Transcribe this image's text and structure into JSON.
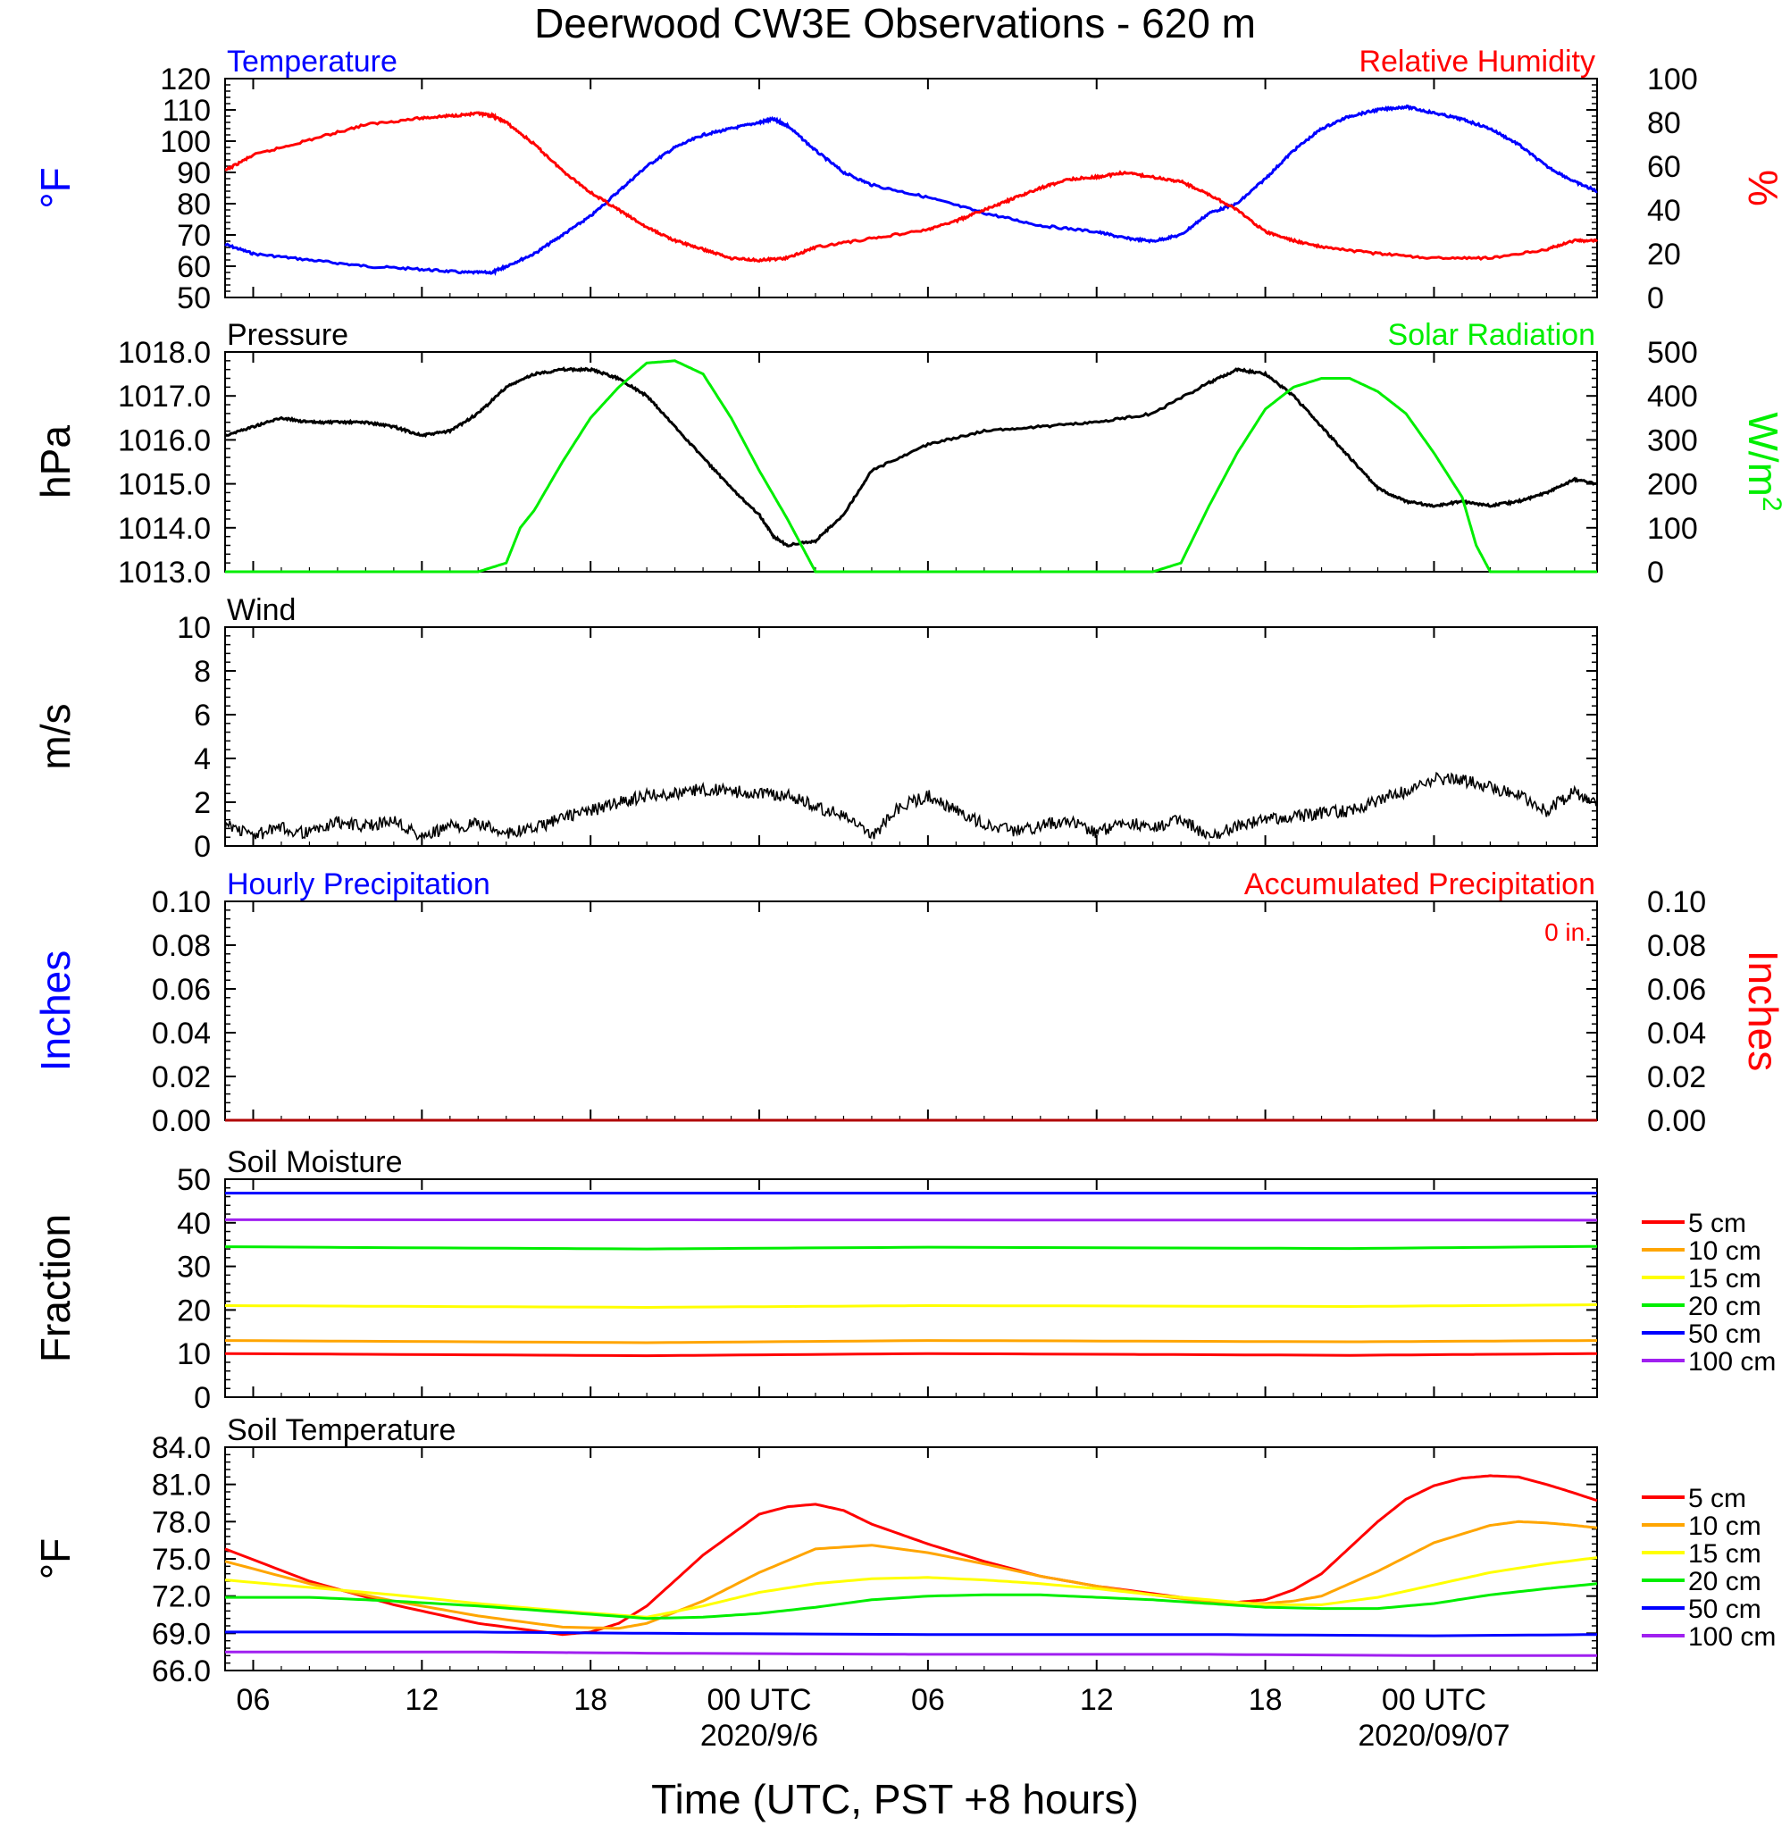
{
  "title": "Deerwood CW3E Observations - 620 m",
  "x_axis": {
    "label": "Time (UTC, PST +8 hours)",
    "ticks": [
      {
        "h": 6,
        "label": "06",
        "date": ""
      },
      {
        "h": 12,
        "label": "12",
        "date": ""
      },
      {
        "h": 18,
        "label": "18",
        "date": ""
      },
      {
        "h": 24,
        "label": "00 UTC",
        "date": "2020/9/6"
      },
      {
        "h": 30,
        "label": "06",
        "date": ""
      },
      {
        "h": 36,
        "label": "12",
        "date": ""
      },
      {
        "h": 42,
        "label": "18",
        "date": ""
      },
      {
        "h": 48,
        "label": "00 UTC",
        "date": "2020/09/07"
      }
    ]
  },
  "colors": {
    "blue": "#0000ff",
    "red": "#ff0000",
    "green": "#00ee00",
    "black": "#000000",
    "orange": "#ffa500",
    "yellow": "#ffff00",
    "purple": "#a020f0",
    "dkred": "#b00000"
  },
  "chart_data": [
    {
      "type": "line",
      "panel": "temp_rh",
      "left_title": "Temperature",
      "right_title": "Relative Humidity",
      "left_ylabel": "°F",
      "right_ylabel": "%",
      "left_ylim": [
        50,
        120
      ],
      "right_ylim": [
        0,
        100
      ],
      "left_ticks": [
        "120",
        "110",
        "100",
        "90",
        "80",
        "70",
        "60",
        "50"
      ],
      "right_ticks": [
        "100",
        "80",
        "60",
        "40",
        "20",
        "0"
      ],
      "series": [
        {
          "axis": "left",
          "color": "#0000ff",
          "x": [
            5,
            6,
            8,
            10,
            12,
            13.5,
            14.5,
            15,
            16,
            17,
            18,
            19,
            20,
            21,
            22,
            23,
            24,
            24.5,
            25,
            26,
            27,
            28,
            30,
            32,
            34,
            36,
            37,
            38,
            39,
            40,
            41,
            42,
            43,
            44,
            45,
            46,
            47,
            48,
            49,
            50,
            51,
            52,
            53,
            53.8
          ],
          "y": [
            67,
            64,
            62,
            60,
            59,
            58,
            58,
            60,
            64,
            70,
            76,
            84,
            92,
            98,
            102,
            104,
            106,
            107,
            105,
            97,
            90,
            86,
            82,
            77,
            73,
            71,
            69,
            68,
            70,
            77,
            80,
            88,
            97,
            104,
            108,
            110,
            111,
            109,
            107,
            104,
            99,
            92,
            87,
            84
          ]
        },
        {
          "axis": "right",
          "color": "#ff0000",
          "x": [
            5,
            6,
            8,
            10,
            12,
            13,
            14,
            14.5,
            15,
            16,
            17,
            18,
            19,
            20,
            21,
            22,
            23,
            24,
            25,
            26,
            28,
            30,
            31,
            32,
            33,
            34,
            35,
            36,
            37,
            38,
            39,
            40,
            41,
            42,
            43,
            44,
            46,
            48,
            50,
            52,
            53,
            53.8
          ],
          "y": [
            58,
            65,
            72,
            79,
            82,
            83,
            84,
            83,
            80,
            70,
            58,
            48,
            40,
            32,
            26,
            22,
            18,
            17,
            18,
            23,
            27,
            31,
            35,
            40,
            45,
            50,
            54,
            55,
            57,
            55,
            53,
            47,
            40,
            30,
            26,
            23,
            20,
            18,
            18,
            22,
            26,
            26
          ]
        }
      ]
    },
    {
      "type": "line",
      "panel": "pressure_solar",
      "left_title": "Pressure",
      "right_title": "Solar Radiation",
      "left_ylabel": "hPa",
      "right_ylabel": "W/m2",
      "left_ylim": [
        1013,
        1018
      ],
      "right_ylim": [
        0,
        500
      ],
      "left_ticks": [
        "1018.0",
        "1017.0",
        "1016.0",
        "1015.0",
        "1014.0",
        "1013.0"
      ],
      "right_ticks": [
        "500",
        "400",
        "300",
        "200",
        "100",
        "0"
      ],
      "series": [
        {
          "axis": "left",
          "color": "#000000",
          "x": [
            5,
            6,
            7,
            8,
            9,
            10,
            11,
            12,
            13,
            14,
            15,
            16,
            17,
            18,
            19,
            20,
            21,
            22,
            23,
            24,
            24.5,
            25,
            26,
            27,
            28,
            30,
            32,
            34,
            36,
            38,
            40,
            41,
            42,
            43,
            44,
            45,
            46,
            47,
            48,
            49,
            50,
            51,
            52,
            53,
            53.8
          ],
          "y": [
            1016.1,
            1016.3,
            1016.5,
            1016.4,
            1016.4,
            1016.4,
            1016.3,
            1016.1,
            1016.2,
            1016.6,
            1017.2,
            1017.5,
            1017.6,
            1017.6,
            1017.4,
            1017.0,
            1016.3,
            1015.6,
            1014.9,
            1014.3,
            1013.8,
            1013.6,
            1013.7,
            1014.3,
            1015.3,
            1015.9,
            1016.2,
            1016.3,
            1016.4,
            1016.6,
            1017.3,
            1017.6,
            1017.5,
            1017.0,
            1016.3,
            1015.6,
            1014.9,
            1014.6,
            1014.5,
            1014.6,
            1014.5,
            1014.6,
            1014.8,
            1015.1,
            1015.0
          ]
        },
        {
          "axis": "right",
          "color": "#00ee00",
          "x": [
            5,
            14,
            15,
            15.5,
            16,
            17,
            18,
            19,
            20,
            21,
            22,
            23,
            24,
            25,
            25.5,
            26,
            36,
            38,
            39,
            40,
            41,
            42,
            43,
            44,
            45,
            46,
            47,
            48,
            49,
            49.5,
            50,
            53.8
          ],
          "y": [
            0,
            0,
            20,
            100,
            140,
            250,
            350,
            420,
            475,
            480,
            450,
            350,
            230,
            120,
            60,
            0,
            0,
            0,
            20,
            150,
            270,
            370,
            420,
            440,
            440,
            410,
            360,
            270,
            170,
            60,
            0,
            0
          ]
        }
      ]
    },
    {
      "type": "line",
      "panel": "wind",
      "left_title": "Wind",
      "left_ylabel": "m/s",
      "left_ylim": [
        0,
        10
      ],
      "left_ticks": [
        "10",
        "8",
        "6",
        "4",
        "2",
        "0"
      ],
      "series": [
        {
          "axis": "left",
          "color": "#000000",
          "x": [
            5,
            6,
            7,
            8,
            9,
            10,
            11,
            12,
            13,
            14,
            15,
            16,
            17,
            18,
            19,
            20,
            21,
            22,
            23,
            24,
            25,
            26,
            27,
            28,
            29,
            30,
            31,
            32,
            33,
            34,
            35,
            36,
            37,
            38,
            39,
            40,
            41,
            42,
            43,
            44,
            45,
            46,
            47,
            48,
            49,
            50,
            51,
            52,
            53,
            53.8
          ],
          "y": [
            1.0,
            0.5,
            0.8,
            0.6,
            1.1,
            0.9,
            1.2,
            0.4,
            0.9,
            1.0,
            0.6,
            0.8,
            1.3,
            1.6,
            2.0,
            2.3,
            2.4,
            2.6,
            2.5,
            2.4,
            2.3,
            1.8,
            1.4,
            0.4,
            1.8,
            2.3,
            1.6,
            1.0,
            0.7,
            0.9,
            1.2,
            0.6,
            1.1,
            0.8,
            1.3,
            0.4,
            0.9,
            1.2,
            1.3,
            1.5,
            1.6,
            2.1,
            2.5,
            3.1,
            3.0,
            2.7,
            2.3,
            1.6,
            2.5,
            1.8
          ]
        }
      ]
    },
    {
      "type": "line",
      "panel": "precip",
      "left_title": "Hourly Precipitation",
      "right_title": "Accumulated Precipitation",
      "accum_label": "0 in.",
      "left_ylabel": "Inches",
      "right_ylabel": "Inches",
      "left_ylim": [
        0,
        0.1
      ],
      "right_ylim": [
        0,
        0.1
      ],
      "left_ticks": [
        "0.10",
        "0.08",
        "0.06",
        "0.04",
        "0.02",
        "0.00"
      ],
      "right_ticks": [
        "0.10",
        "0.08",
        "0.06",
        "0.04",
        "0.02",
        "0.00"
      ],
      "series": [
        {
          "axis": "left",
          "color": "#b00000",
          "x": [
            5,
            53.8
          ],
          "y": [
            0,
            0
          ]
        }
      ]
    },
    {
      "type": "line",
      "panel": "soil_moisture",
      "left_title": "Soil Moisture",
      "left_ylabel": "Fraction",
      "left_ylim": [
        0,
        50
      ],
      "left_ticks": [
        "50",
        "40",
        "30",
        "20",
        "10",
        "0"
      ],
      "legend": [
        "5 cm",
        "10 cm",
        "15 cm",
        "20 cm",
        "50 cm",
        "100 cm"
      ],
      "series": [
        {
          "name": "5 cm",
          "color": "#ff0000",
          "x": [
            5,
            20,
            30,
            45,
            53.8
          ],
          "y": [
            10,
            9.5,
            10,
            9.6,
            10
          ]
        },
        {
          "name": "10 cm",
          "color": "#ffa500",
          "x": [
            5,
            20,
            30,
            45,
            53.8
          ],
          "y": [
            13,
            12.5,
            13,
            12.7,
            13
          ]
        },
        {
          "name": "15 cm",
          "color": "#ffff00",
          "x": [
            5,
            20,
            30,
            45,
            53.8
          ],
          "y": [
            21,
            20.6,
            21,
            20.8,
            21.2
          ]
        },
        {
          "name": "20 cm",
          "color": "#00ee00",
          "x": [
            5,
            20,
            30,
            45,
            53.8
          ],
          "y": [
            34.5,
            34,
            34.4,
            34.1,
            34.6
          ]
        },
        {
          "name": "50 cm",
          "color": "#0000ff",
          "x": [
            5,
            53.8
          ],
          "y": [
            46.8,
            46.8
          ]
        },
        {
          "name": "100 cm",
          "color": "#a020f0",
          "x": [
            5,
            53.8
          ],
          "y": [
            40.7,
            40.6
          ]
        }
      ]
    },
    {
      "type": "line",
      "panel": "soil_temp",
      "left_title": "Soil Temperature",
      "left_ylabel": "°F",
      "left_ylim": [
        66,
        84
      ],
      "left_ticks": [
        "84.0",
        "81.0",
        "78.0",
        "75.0",
        "72.0",
        "69.0",
        "66.0"
      ],
      "legend": [
        "5 cm",
        "10 cm",
        "15 cm",
        "20 cm",
        "50 cm",
        "100 cm"
      ],
      "series": [
        {
          "name": "5 cm",
          "color": "#ff0000",
          "x": [
            5,
            8,
            11,
            14,
            17,
            18,
            19,
            20,
            22,
            24,
            25,
            26,
            27,
            28,
            30,
            32,
            34,
            36,
            38,
            40,
            41,
            42,
            43,
            44,
            45,
            46,
            47,
            48,
            49,
            50,
            51,
            52,
            53,
            53.8
          ],
          "y": [
            75.8,
            73.2,
            71.3,
            69.8,
            68.9,
            69.1,
            69.8,
            71.2,
            75.3,
            78.6,
            79.2,
            79.4,
            78.9,
            77.8,
            76.2,
            74.8,
            73.6,
            72.8,
            72.2,
            71.6,
            71.5,
            71.7,
            72.5,
            73.8,
            75.9,
            78,
            79.8,
            80.9,
            81.5,
            81.7,
            81.6,
            81.0,
            80.3,
            79.7
          ]
        },
        {
          "name": "10 cm",
          "color": "#ffa500",
          "x": [
            5,
            8,
            11,
            14,
            17,
            19,
            20,
            22,
            24,
            26,
            28,
            30,
            32,
            34,
            36,
            38,
            40,
            42,
            43,
            44,
            46,
            48,
            50,
            51,
            52,
            53,
            53.8
          ],
          "y": [
            74.8,
            73,
            71.6,
            70.4,
            69.5,
            69.4,
            69.8,
            71.6,
            73.9,
            75.8,
            76.1,
            75.5,
            74.6,
            73.6,
            72.8,
            72.1,
            71.5,
            71.4,
            71.6,
            72,
            74,
            76.3,
            77.7,
            78,
            77.9,
            77.7,
            77.5
          ]
        },
        {
          "name": "15 cm",
          "color": "#ffff00",
          "x": [
            5,
            8,
            11,
            14,
            17,
            20,
            22,
            24,
            26,
            28,
            30,
            32,
            34,
            36,
            38,
            40,
            42,
            44,
            46,
            48,
            50,
            52,
            53.8
          ],
          "y": [
            73.3,
            72.7,
            72.1,
            71.4,
            70.8,
            70.3,
            71.2,
            72.3,
            73,
            73.4,
            73.5,
            73.3,
            73,
            72.6,
            72.1,
            71.7,
            71.3,
            71.3,
            71.9,
            72.9,
            73.9,
            74.6,
            75.1
          ]
        },
        {
          "name": "20 cm",
          "color": "#00ee00",
          "x": [
            5,
            8,
            11,
            14,
            17,
            20,
            22,
            24,
            26,
            28,
            30,
            32,
            34,
            36,
            38,
            40,
            42,
            44,
            46,
            48,
            50,
            52,
            53.8
          ],
          "y": [
            71.9,
            71.9,
            71.6,
            71.2,
            70.7,
            70.2,
            70.3,
            70.6,
            71.1,
            71.7,
            72,
            72.1,
            72.1,
            71.9,
            71.7,
            71.4,
            71.1,
            71,
            71,
            71.4,
            72.1,
            72.6,
            73
          ]
        },
        {
          "name": "50 cm",
          "color": "#0000ff",
          "x": [
            5,
            14,
            20,
            30,
            40,
            48,
            53.8
          ],
          "y": [
            69.1,
            69.1,
            69,
            68.9,
            68.9,
            68.8,
            68.9
          ]
        },
        {
          "name": "100 cm",
          "color": "#a020f0",
          "x": [
            5,
            14,
            20,
            30,
            40,
            48,
            53.8
          ],
          "y": [
            67.5,
            67.5,
            67.4,
            67.3,
            67.3,
            67.2,
            67.2
          ]
        }
      ]
    }
  ]
}
